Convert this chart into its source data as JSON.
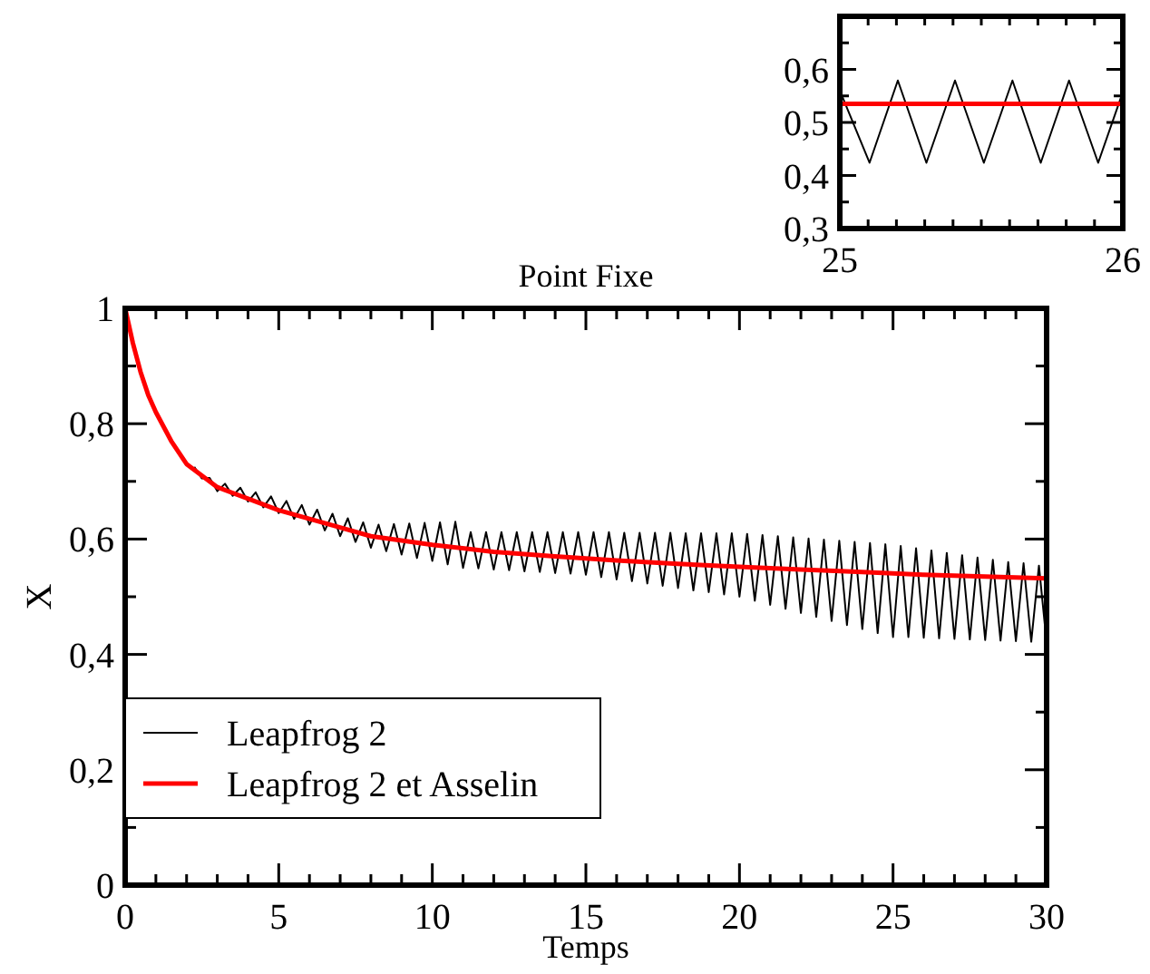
{
  "chart_data": [
    {
      "type": "line",
      "title": "Point Fixe",
      "xlabel": "Temps",
      "ylabel": "X",
      "xlim": [
        0,
        30
      ],
      "ylim": [
        0,
        1
      ],
      "xticks": [
        0,
        {
          "value": 1,
          "label": null
        },
        {
          "value": 2,
          "label": null
        },
        {
          "value": 3,
          "label": null
        },
        {
          "value": 4,
          "label": null
        },
        5,
        {
          "value": 6,
          "label": null
        },
        {
          "value": 7,
          "label": null
        },
        {
          "value": 8,
          "label": null
        },
        {
          "value": 9,
          "label": null
        },
        10,
        {
          "value": 11,
          "label": null
        },
        {
          "value": 12,
          "label": null
        },
        {
          "value": 13,
          "label": null
        },
        {
          "value": 14,
          "label": null
        },
        15,
        {
          "value": 16,
          "label": null
        },
        {
          "value": 17,
          "label": null
        },
        {
          "value": 18,
          "label": null
        },
        {
          "value": 19,
          "label": null
        },
        20,
        {
          "value": 21,
          "label": null
        },
        {
          "value": 22,
          "label": null
        },
        {
          "value": 23,
          "label": null
        },
        {
          "value": 24,
          "label": null
        },
        25,
        {
          "value": 26,
          "label": null
        },
        {
          "value": 27,
          "label": null
        },
        {
          "value": 28,
          "label": null
        },
        {
          "value": 29,
          "label": null
        },
        30
      ],
      "yticks": [
        0,
        {
          "value": 0.1,
          "label": null
        },
        {
          "value": 0.2,
          "label": "0,2"
        },
        {
          "value": 0.3,
          "label": null
        },
        {
          "value": 0.4,
          "label": "0,4"
        },
        {
          "value": 0.5,
          "label": null
        },
        {
          "value": 0.6,
          "label": "0,6"
        },
        {
          "value": 0.7,
          "label": null
        },
        {
          "value": 0.8,
          "label": "0,8"
        },
        {
          "value": 0.9,
          "label": null
        },
        1
      ],
      "legend": "bottom left",
      "grid": false,
      "marker": "none",
      "line_style": "solid",
      "series": [
        {
          "name": "Leapfrog 2",
          "color": "#000000",
          "x": [
            0,
            0.25,
            0.5,
            0.75,
            1,
            1.25,
            1.5,
            1.75,
            2,
            2.25,
            2.5,
            2.75,
            3,
            3.25,
            3.5,
            3.75,
            4,
            4.25,
            4.5,
            4.75,
            5,
            5.25,
            5.5,
            5.75,
            6,
            6.25,
            6.5,
            6.75,
            7,
            7.25,
            7.5,
            7.75,
            8,
            8.25,
            8.5,
            8.75,
            9,
            9.25,
            9.5,
            9.75,
            10,
            10.25,
            10.5,
            10.75,
            11,
            11.25,
            11.5,
            11.75,
            12,
            12.25,
            12.5,
            12.75,
            13,
            13.25,
            13.5,
            13.75,
            14,
            14.25,
            14.5,
            14.75,
            15,
            15.25,
            15.5,
            15.75,
            16,
            16.25,
            16.5,
            16.75,
            17,
            17.25,
            17.5,
            17.75,
            18,
            18.25,
            18.5,
            18.75,
            19,
            19.25,
            19.5,
            19.75,
            20,
            20.25,
            20.5,
            20.75,
            21,
            21.25,
            21.5,
            21.75,
            22,
            22.25,
            22.5,
            22.75,
            23,
            23.25,
            23.5,
            23.75,
            24,
            24.25,
            24.5,
            24.75,
            25,
            25.25,
            25.5,
            25.75,
            26,
            26.25,
            26.5,
            26.75,
            27,
            27.25,
            27.5,
            27.75,
            28,
            28.25,
            28.5,
            28.75,
            29,
            29.25,
            29.5,
            29.75,
            30
          ],
          "values": [
            1.0,
            0.941,
            0.889,
            null,
            null,
            null,
            null,
            null,
            null,
            0.725,
            0.705,
            0.706,
            0.683,
            0.696,
            0.675,
            0.689,
            0.665,
            0.681,
            0.655,
            0.674,
            0.645,
            0.666,
            0.635,
            0.659,
            0.625,
            0.651,
            0.615,
            0.644,
            0.605,
            0.636,
            0.595,
            0.629,
            0.585,
            0.625,
            0.579,
            0.626,
            0.573,
            0.627,
            0.567,
            0.628,
            0.562,
            0.629,
            0.556,
            0.63,
            0.55,
            0.612,
            0.549,
            0.612,
            0.547,
            0.612,
            0.546,
            0.612,
            0.544,
            0.612,
            0.543,
            0.612,
            0.541,
            0.612,
            0.54,
            0.612,
            0.538,
            0.612,
            0.534,
            0.612,
            0.53,
            0.611,
            0.527,
            0.611,
            0.523,
            0.611,
            0.519,
            0.611,
            0.515,
            0.61,
            0.511,
            0.61,
            0.508,
            0.61,
            0.504,
            0.61,
            0.5,
            0.609,
            0.493,
            0.607,
            0.486,
            0.605,
            0.479,
            0.603,
            0.472,
            0.601,
            0.465,
            0.599,
            0.458,
            0.597,
            0.451,
            0.595,
            0.444,
            0.593,
            0.437,
            0.591,
            0.43,
            0.588,
            0.43,
            0.584,
            0.429,
            0.58,
            0.428,
            0.576,
            0.427,
            0.572,
            0.426,
            0.568,
            0.425,
            0.564,
            0.424,
            0.56,
            0.423,
            0.558,
            0.422,
            0.554,
            0.42
          ]
        },
        {
          "name": "Leapfrog 2 et Asselin",
          "color": "#ff0000",
          "x": [
            0,
            0.25,
            0.5,
            0.75,
            1,
            1.5,
            2,
            2.5,
            3,
            4,
            5,
            6,
            7,
            8,
            10,
            12,
            14,
            16,
            18,
            20,
            22,
            24,
            26,
            28,
            30
          ],
          "values": [
            1.0,
            0.94,
            0.89,
            0.85,
            0.82,
            0.77,
            0.73,
            0.71,
            0.69,
            0.67,
            0.65,
            0.635,
            0.62,
            0.605,
            0.59,
            0.578,
            0.57,
            0.563,
            0.557,
            0.552,
            0.547,
            0.543,
            0.538,
            0.535,
            0.532
          ]
        }
      ]
    },
    {
      "type": "line",
      "xlim": [
        25,
        26
      ],
      "ylim": [
        0.3,
        0.7
      ],
      "xticks": [
        25,
        {
          "value": 25.1,
          "label": null
        },
        {
          "value": 25.2,
          "label": null
        },
        {
          "value": 25.3,
          "label": null
        },
        {
          "value": 25.4,
          "label": null
        },
        {
          "value": 25.5,
          "label": null
        },
        {
          "value": 25.6,
          "label": null
        },
        {
          "value": 25.7,
          "label": null
        },
        {
          "value": 25.8,
          "label": null
        },
        {
          "value": 25.9,
          "label": null
        },
        26
      ],
      "yticks": [
        {
          "value": 0.3,
          "label": "0,3"
        },
        {
          "value": 0.35,
          "label": null
        },
        {
          "value": 0.4,
          "label": "0,4"
        },
        {
          "value": 0.45,
          "label": null
        },
        {
          "value": 0.5,
          "label": "0,5"
        },
        {
          "value": 0.55,
          "label": null
        },
        {
          "value": 0.6,
          "label": "0,6"
        },
        {
          "value": 0.65,
          "label": null
        }
      ],
      "legend": false,
      "grid": false,
      "marker": "none",
      "line_style": "solid",
      "series": [
        {
          "color": "#000000",
          "x": [
            25,
            25.105,
            25.205,
            25.306,
            25.407,
            25.509,
            25.61,
            25.71,
            25.81,
            25.913,
            26
          ],
          "values": [
            0.56,
            0.424,
            0.579,
            0.424,
            0.579,
            0.424,
            0.579,
            0.424,
            0.579,
            0.424,
            0.557
          ]
        },
        {
          "color": "#ff0000",
          "x": [
            25,
            26
          ],
          "values": [
            0.535,
            0.535
          ]
        }
      ]
    }
  ]
}
